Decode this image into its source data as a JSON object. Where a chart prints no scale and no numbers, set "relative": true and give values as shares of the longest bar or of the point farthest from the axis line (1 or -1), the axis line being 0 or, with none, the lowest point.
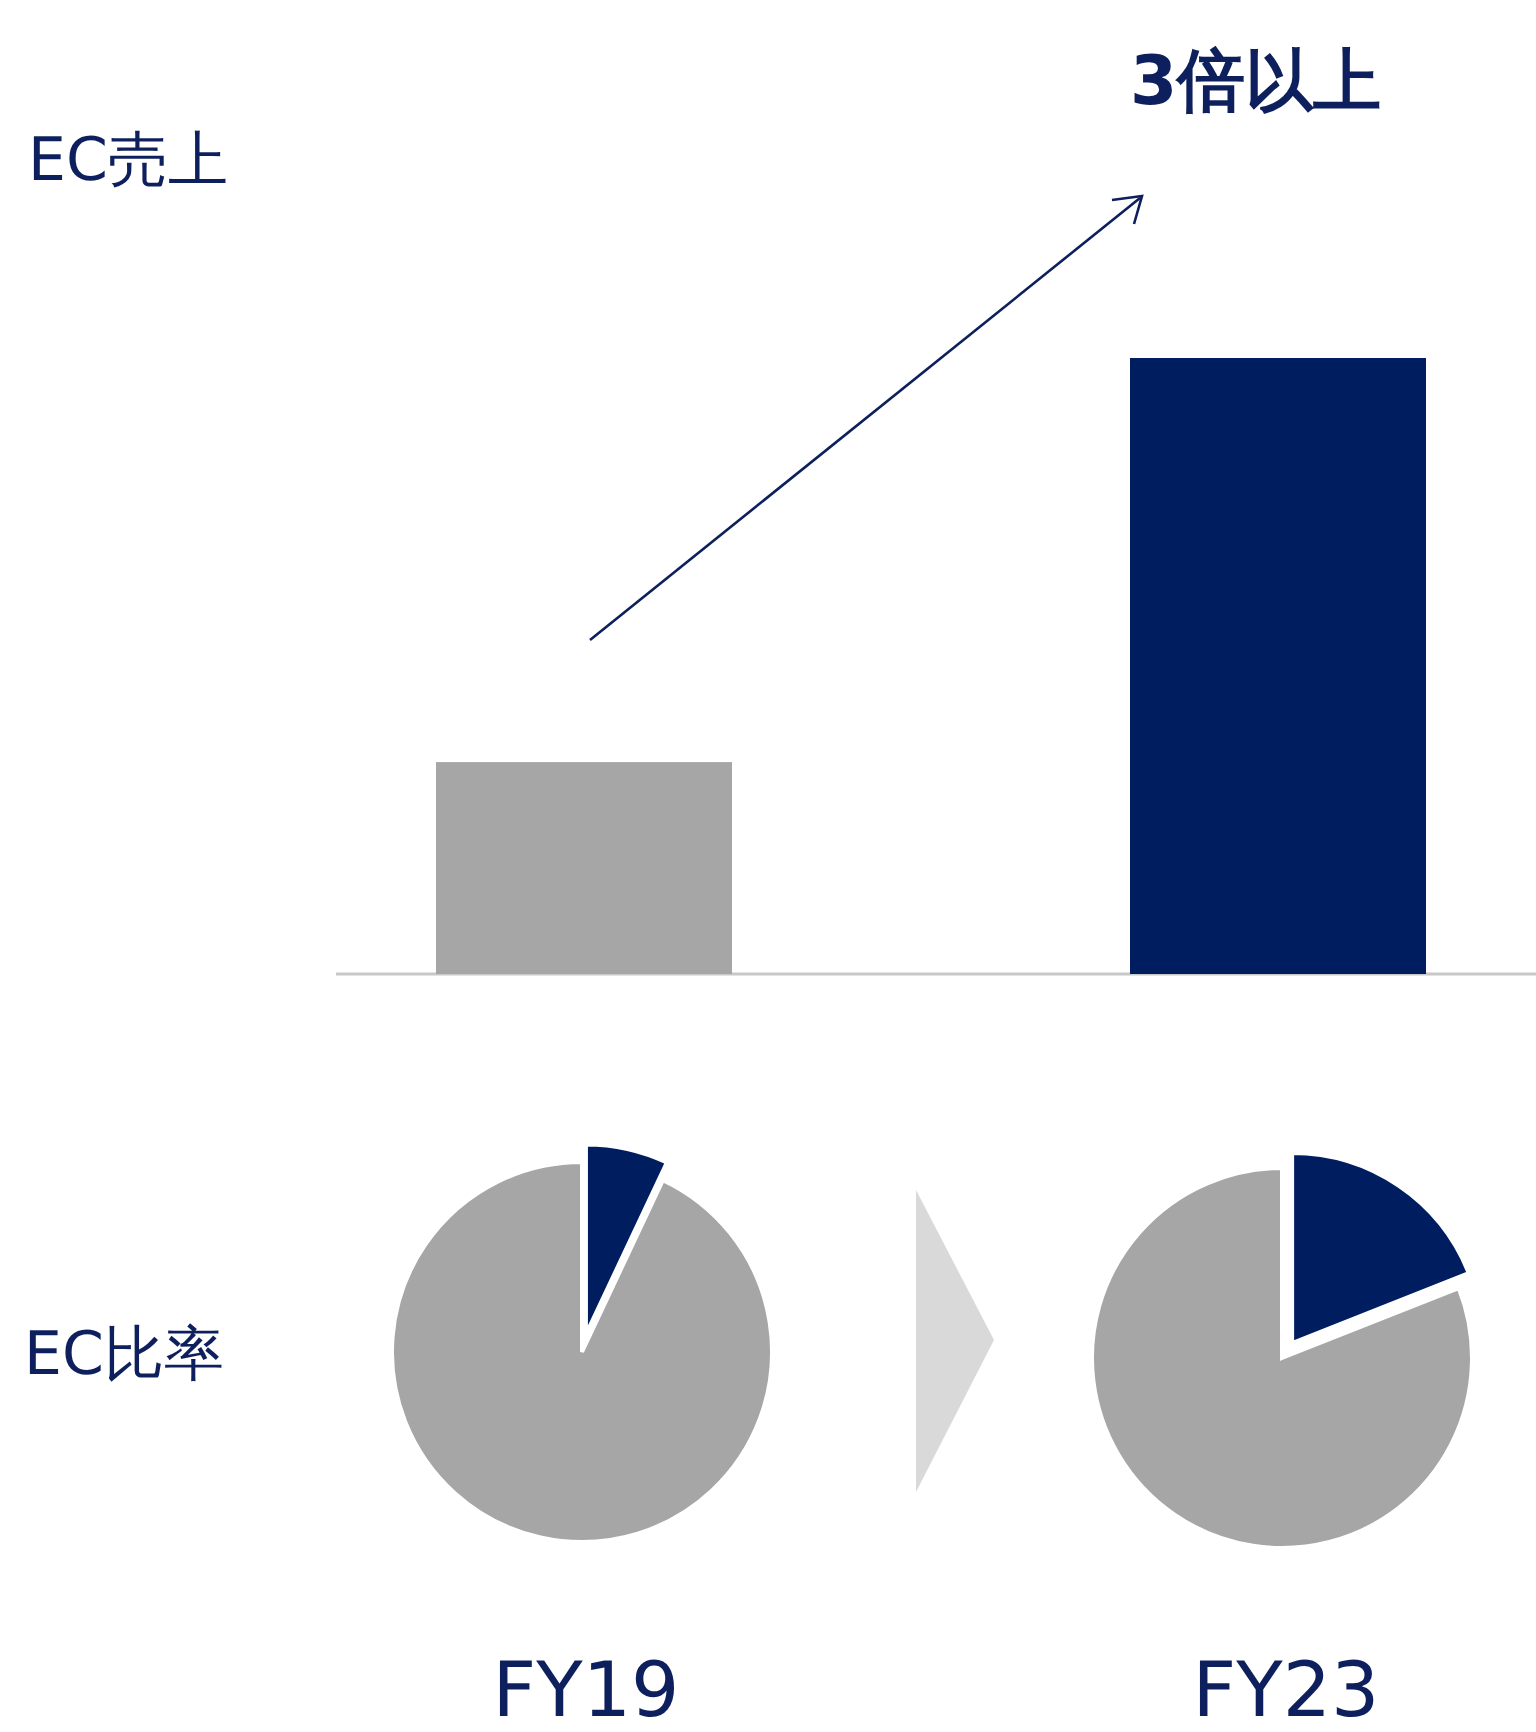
{
  "chart_data": [
    {
      "type": "bar",
      "ylabel": "EC売上",
      "categories": [
        null,
        null
      ],
      "values": [
        0.344,
        1
      ],
      "colors": [
        "#a6a6a6",
        "#001e5f"
      ],
      "relative": true,
      "annotations": [
        "3倍以上"
      ]
    },
    {
      "type": "pie",
      "title": "EC比率",
      "xlabel": "FY19",
      "categories": [
        null,
        null
      ],
      "values": [
        7,
        93
      ],
      "colors": [
        "#001e5f",
        "#a6a6a6"
      ]
    },
    {
      "type": "pie",
      "xlabel": "FY23",
      "categories": [
        null,
        null
      ],
      "values": [
        19,
        81
      ],
      "colors": [
        "#001e5f",
        "#a6a6a6"
      ]
    }
  ]
}
